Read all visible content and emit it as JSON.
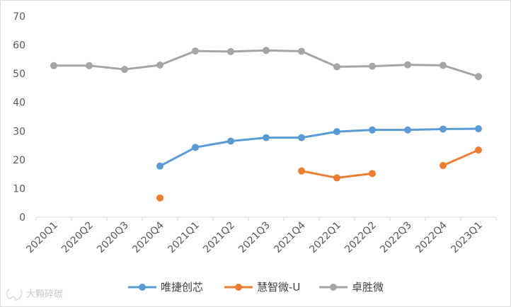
{
  "watermark": "大颗碎碳",
  "chart_data": {
    "type": "line",
    "title": "",
    "xlabel": "",
    "ylabel": "",
    "ylim": [
      0,
      70
    ],
    "yticks": [
      "0",
      "10",
      "20",
      "30",
      "40",
      "50",
      "60",
      "70"
    ],
    "categories": [
      "2020Q1",
      "2020Q2",
      "2020Q3",
      "2020Q4",
      "2021Q1",
      "2021Q2",
      "2021Q3",
      "2021Q4",
      "2022Q1",
      "2022Q2",
      "2022Q3",
      "2022Q4",
      "2023Q1"
    ],
    "grid": false,
    "legend": "bottom",
    "series": [
      {
        "name": "唯捷创芯",
        "color": "#5B9BD5",
        "values": [
          null,
          null,
          null,
          17.8,
          24.3,
          26.5,
          27.7,
          27.7,
          29.8,
          30.4,
          30.4,
          30.7,
          30.8
        ]
      },
      {
        "name": "慧智微-U",
        "color": "#ED7D31",
        "values": [
          null,
          null,
          null,
          6.7,
          null,
          null,
          null,
          16.1,
          13.7,
          15.2,
          null,
          18.0,
          23.4
        ]
      },
      {
        "name": "卓胜微",
        "color": "#A5A5A5",
        "values": [
          52.8,
          52.8,
          51.5,
          53.0,
          57.9,
          57.7,
          58.1,
          57.8,
          52.4,
          52.6,
          53.1,
          52.9,
          49.0
        ]
      }
    ]
  }
}
